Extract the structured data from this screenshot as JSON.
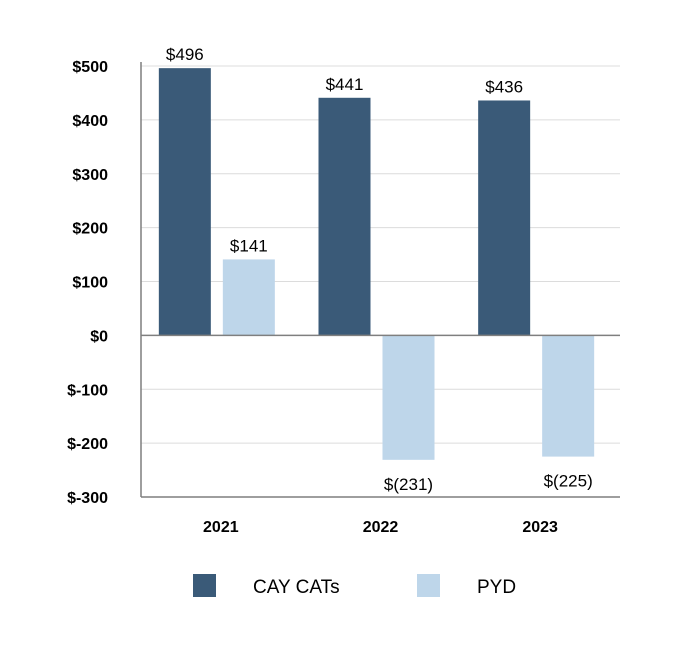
{
  "chart_data": {
    "type": "bar",
    "title": "",
    "xlabel": "",
    "ylabel": "",
    "categories": [
      "2021",
      "2022",
      "2023"
    ],
    "series": [
      {
        "name": "CAY CATs",
        "color": "#3a5a78",
        "values": [
          496,
          441,
          436
        ],
        "labels": [
          "$496",
          "$441",
          "$436"
        ]
      },
      {
        "name": "PYD",
        "color": "#bed6ea",
        "values": [
          141,
          -231,
          -225
        ],
        "labels": [
          "$141",
          "$(231)",
          "$(225)"
        ]
      }
    ],
    "yticks": [
      500,
      400,
      300,
      200,
      100,
      0,
      -100,
      -200,
      -300
    ],
    "ytick_labels": [
      "$500",
      "$400",
      "$300",
      "$200",
      "$100",
      "$0",
      "$-100",
      "$-200",
      "$-300"
    ],
    "ylim": [
      -300,
      500
    ],
    "grid": true,
    "legend_position": "bottom"
  }
}
